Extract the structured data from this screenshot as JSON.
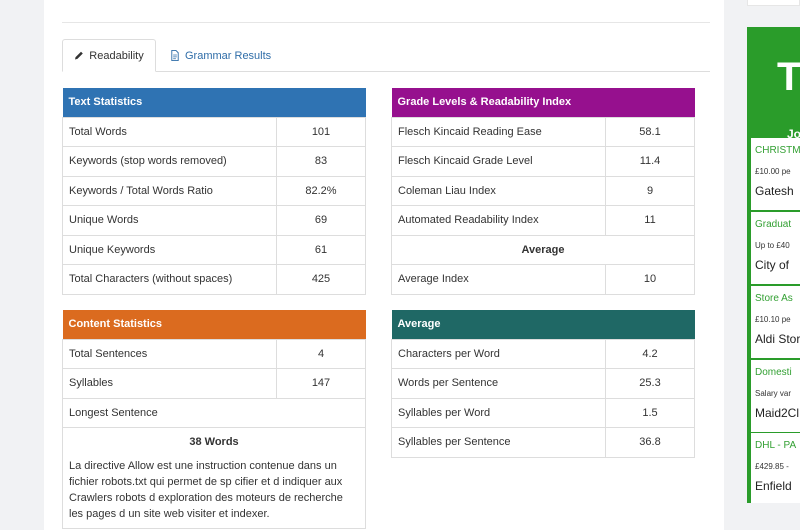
{
  "tabs": {
    "readability": "Readability",
    "grammar": "Grammar Results"
  },
  "text_stats": {
    "header": "Text Statistics",
    "rows": [
      {
        "label": "Total Words",
        "value": "101"
      },
      {
        "label": "Keywords (stop words removed)",
        "value": "83"
      },
      {
        "label": "Keywords / Total Words Ratio",
        "value": "82.2%"
      },
      {
        "label": "Unique Words",
        "value": "69"
      },
      {
        "label": "Unique Keywords",
        "value": "61"
      },
      {
        "label": "Total Characters (without spaces)",
        "value": "425"
      }
    ]
  },
  "grade_levels": {
    "header": "Grade Levels & Readability Index",
    "rows": [
      {
        "label": "Flesch Kincaid Reading Ease",
        "value": "58.1"
      },
      {
        "label": "Flesch Kincaid Grade Level",
        "value": "11.4"
      },
      {
        "label": "Coleman Liau Index",
        "value": "9"
      },
      {
        "label": "Automated Readability Index",
        "value": "11"
      }
    ],
    "average_label": "Average",
    "average_row": {
      "label": "Average Index",
      "value": "10"
    }
  },
  "content_stats": {
    "header": "Content Statistics",
    "rows": [
      {
        "label": "Total Sentences",
        "value": "4"
      },
      {
        "label": "Syllables",
        "value": "147"
      }
    ],
    "longest_label": "Longest Sentence",
    "longest_words": "38 Words",
    "longest_text": "La directive Allow est une instruction contenue dans un fichier robots.txt qui permet de sp cifier et d indiquer aux Crawlers robots d exploration des moteurs de recherche les pages d un site web visiter et indexer."
  },
  "average": {
    "header": "Average",
    "rows": [
      {
        "label": "Characters per Word",
        "value": "4.2"
      },
      {
        "label": "Words per Sentence",
        "value": "25.3"
      },
      {
        "label": "Syllables per Word",
        "value": "1.5"
      },
      {
        "label": "Syllables per Sentence",
        "value": "36.8"
      }
    ]
  },
  "ad": {
    "logo": "To",
    "subtitle": "Jo",
    "jobs": [
      {
        "title": "CHRISTM",
        "salary": "£10.00 pe",
        "company": "Gatesh"
      },
      {
        "title": "Graduat",
        "salary": "Up to £40",
        "company": "City of"
      },
      {
        "title": "Store As",
        "salary": "£10.10 pe",
        "company": "Aldi Stor"
      },
      {
        "title": "Domesti",
        "salary": "Salary var",
        "company": "Maid2Cl"
      },
      {
        "title": "DHL - PA",
        "salary": "£429.85 -",
        "company": "Enfield"
      }
    ],
    "colors": {
      "brand": "#2a9c2a"
    }
  },
  "colors": {
    "text_stats": "#2f73b3",
    "grade_levels": "#96108e",
    "content_stats": "#db6b1f",
    "average": "#1f6865"
  }
}
